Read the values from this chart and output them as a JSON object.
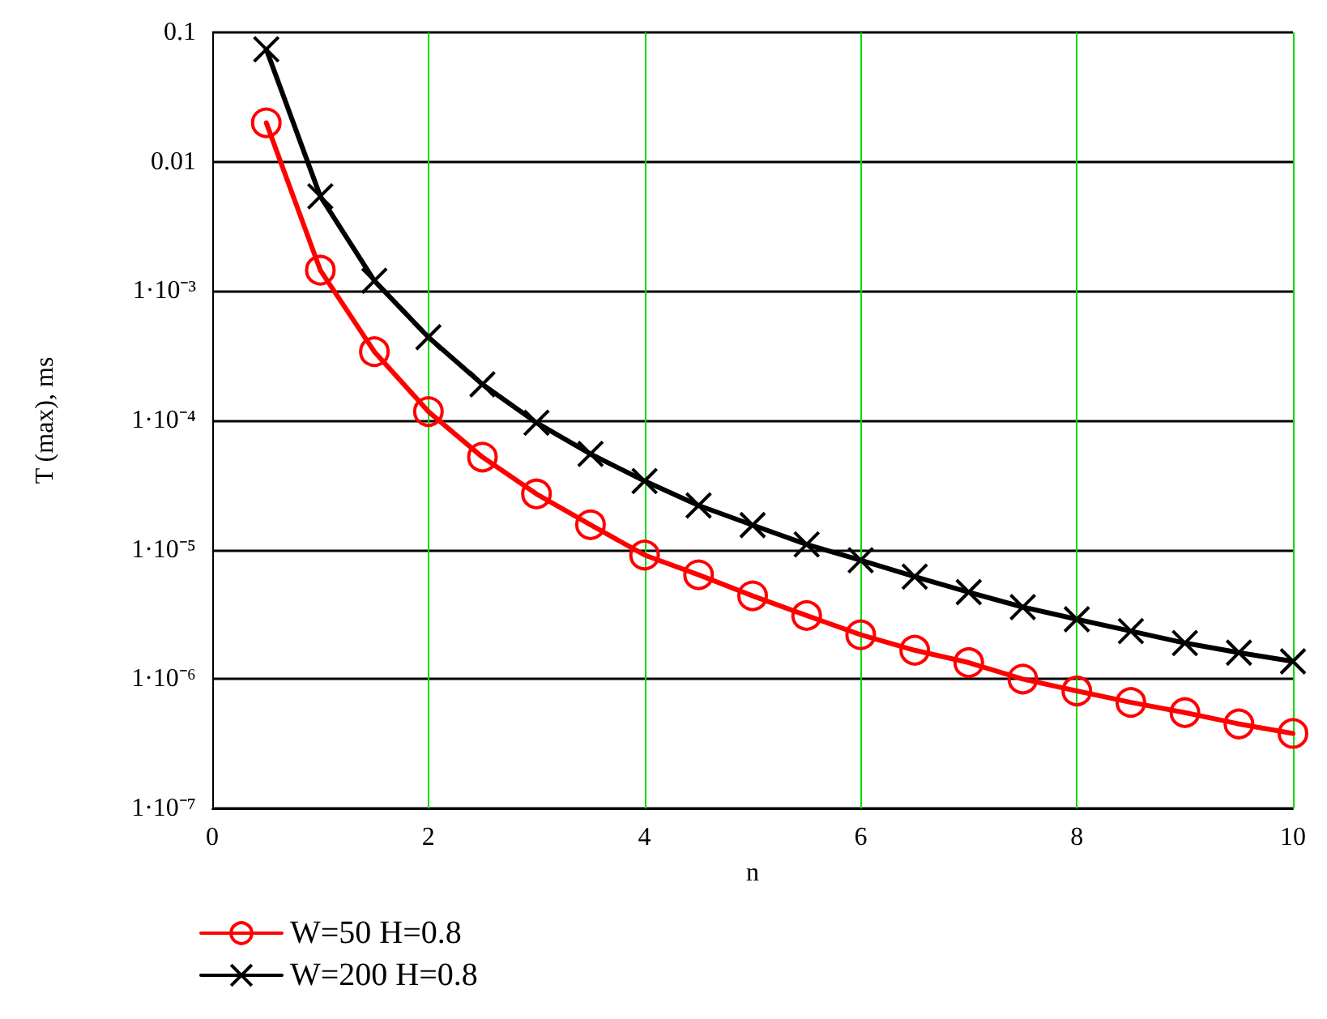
{
  "chart_data": {
    "type": "line",
    "xlabel": "n",
    "ylabel": "T (max), ms",
    "x": [
      0.5,
      1,
      1.5,
      2,
      2.5,
      3,
      3.5,
      4,
      4.5,
      5,
      5.5,
      6,
      6.5,
      7,
      7.5,
      8,
      8.5,
      9,
      9.5,
      10
    ],
    "series": [
      {
        "name": "W=50 H=0.8",
        "color": "#ff0000",
        "marker": "circle",
        "values": [
          0.02,
          0.00145,
          0.00034,
          0.000117,
          5.2e-05,
          2.7e-05,
          1.56e-05,
          9.1e-06,
          6.4e-06,
          4.4e-06,
          3.1e-06,
          2.2e-06,
          1.67e-06,
          1.34e-06,
          1e-06,
          8.1e-07,
          6.6e-07,
          5.5e-07,
          4.5e-07,
          3.8e-07
        ]
      },
      {
        "name": "W=200 H=0.8",
        "color": "#000000",
        "marker": "cross",
        "values": [
          0.074,
          0.0054,
          0.0012,
          0.00044,
          0.00019,
          9.6e-05,
          5.5e-05,
          3.4e-05,
          2.2e-05,
          1.55e-05,
          1.1e-05,
          8.3e-06,
          6.2e-06,
          4.7e-06,
          3.6e-06,
          2.9e-06,
          2.35e-06,
          1.9e-06,
          1.6e-06,
          1.37e-06
        ]
      }
    ],
    "log": "y",
    "xlim": [
      0,
      10
    ],
    "xticks": [
      0,
      2,
      4,
      6,
      8,
      10
    ],
    "ylim": [
      1e-07,
      0.1
    ],
    "yticks": [
      {
        "value": 1e-07,
        "label": "1·10⁻⁷"
      },
      {
        "value": 1e-06,
        "label": "1·10⁻⁶"
      },
      {
        "value": 1e-05,
        "label": "1·10⁻⁵"
      },
      {
        "value": 0.0001,
        "label": "1·10⁻⁴"
      },
      {
        "value": 0.001,
        "label": "1·10⁻³"
      },
      0.01,
      0.1
    ],
    "grid": true,
    "legend": "bottom left",
    "line_style": "solid"
  }
}
